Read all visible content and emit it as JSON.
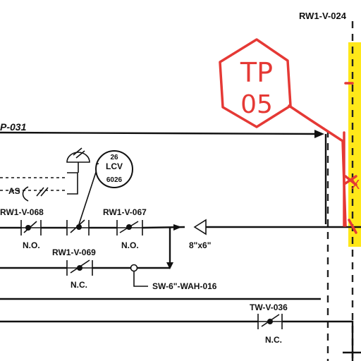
{
  "diagram": {
    "labels": {
      "top_right_valve": "RW1-V-024",
      "left_pipe": "P-031",
      "lcv_top": "26",
      "lcv_mid": "LCV",
      "lcv_bottom": "6026",
      "as_label": "AS",
      "valve_068": "RW1-V-068",
      "valve_068_state": "N.O.",
      "valve_067": "RW1-V-067",
      "valve_067_state": "N.O.",
      "reducer": "8\"x6\"",
      "valve_069": "RW1-V-069",
      "valve_069_state": "N.C.",
      "line_ref": "SW-6\"-WAH-016",
      "valve_036": "TW-V-036",
      "valve_036_state": "N.C."
    },
    "markup": {
      "test_point_line1": "TP",
      "test_point_line2": "05",
      "edge_mark": "X"
    },
    "colors": {
      "ink": "#111111",
      "markup_red": "#e53935",
      "highlight_yellow": "#ffe600"
    }
  }
}
